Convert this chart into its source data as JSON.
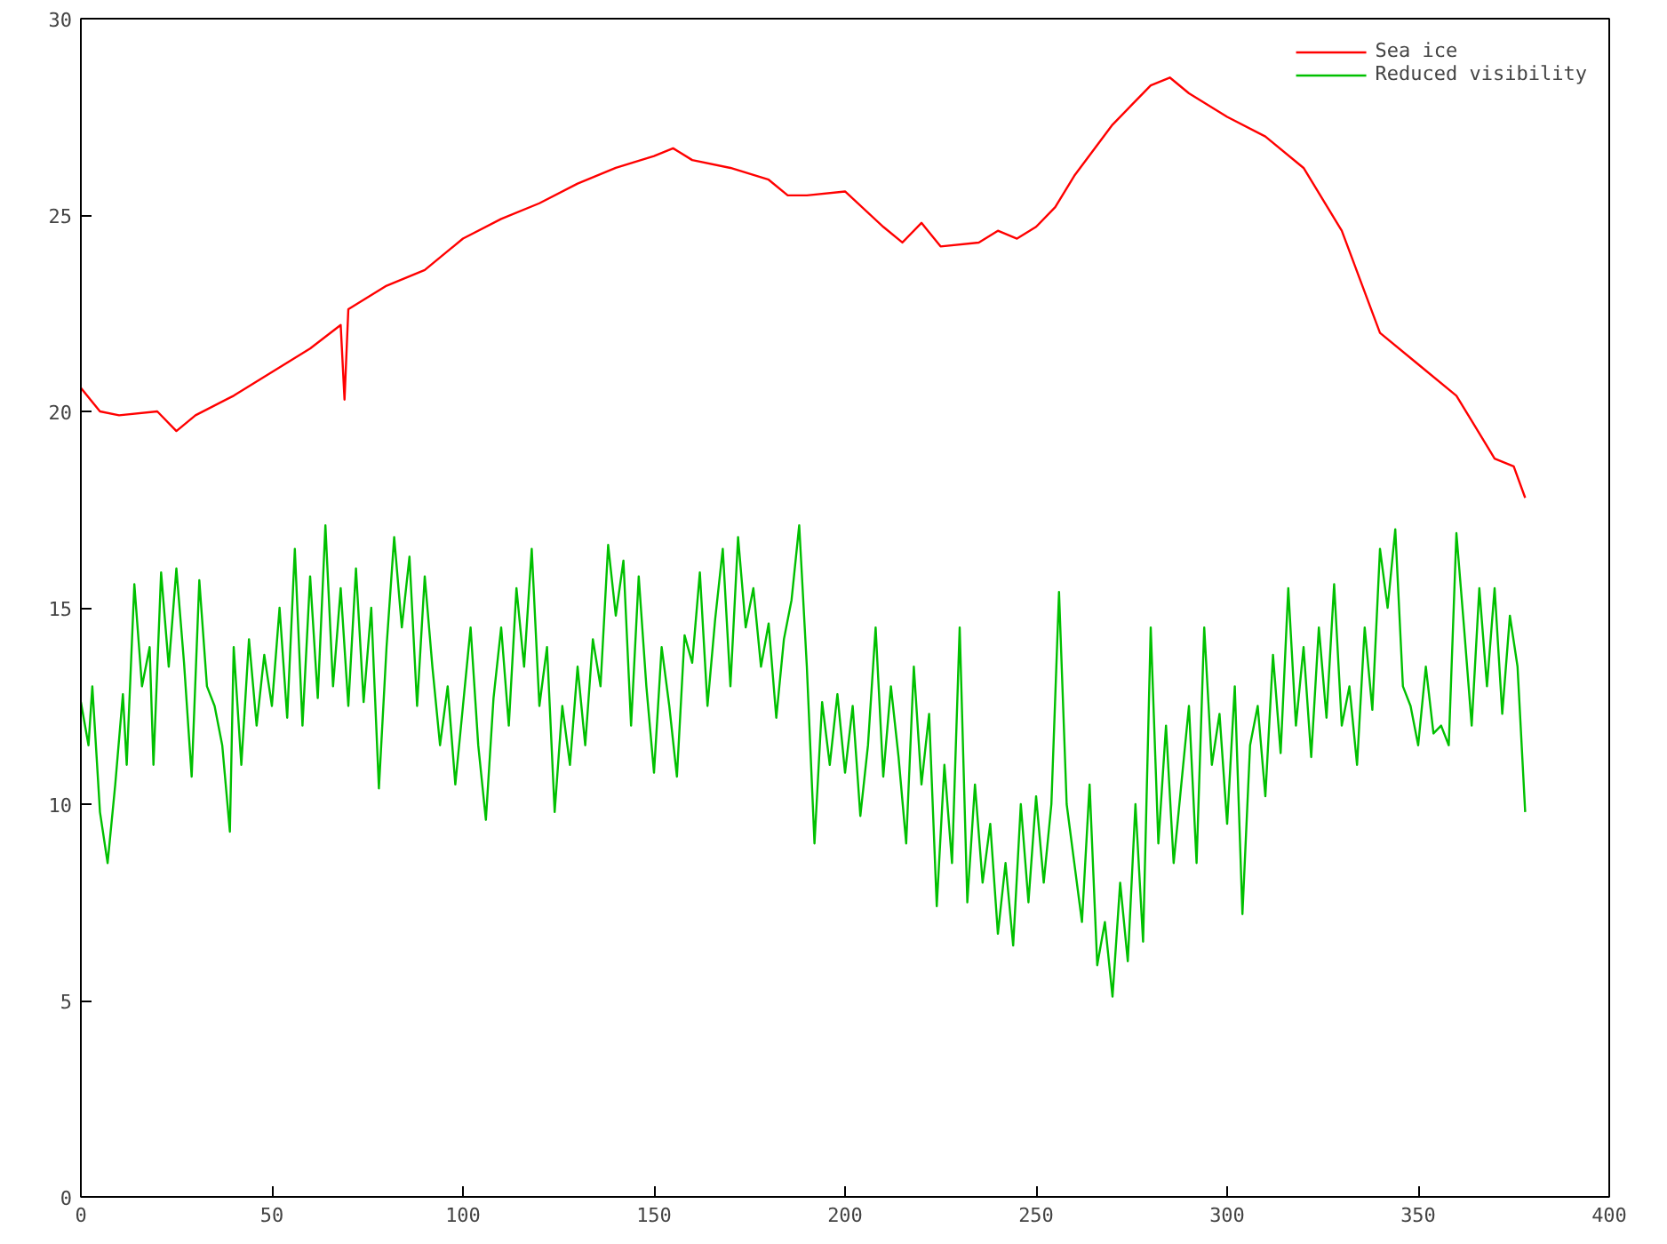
{
  "chart_data": {
    "type": "line",
    "xlim": [
      0,
      400
    ],
    "ylim": [
      0,
      30
    ],
    "xticks": [
      0,
      50,
      100,
      150,
      200,
      250,
      300,
      350,
      400
    ],
    "yticks": [
      0,
      5,
      10,
      15,
      20,
      25,
      30
    ],
    "grid": false,
    "legend": "top right",
    "marker": "none",
    "line_style": "solid",
    "series": [
      {
        "name": "Sea ice",
        "color": "#ff0000",
        "x": [
          0,
          5,
          10,
          20,
          25,
          30,
          40,
          50,
          60,
          68,
          69,
          70,
          80,
          90,
          100,
          110,
          120,
          130,
          140,
          150,
          155,
          160,
          170,
          180,
          185,
          190,
          200,
          210,
          215,
          220,
          225,
          235,
          240,
          245,
          250,
          255,
          260,
          270,
          280,
          285,
          290,
          300,
          310,
          320,
          330,
          340,
          350,
          360,
          365,
          370,
          375,
          378
        ],
        "values": [
          20.6,
          20.0,
          19.9,
          20.0,
          19.5,
          19.9,
          20.4,
          21.0,
          21.6,
          22.2,
          20.3,
          22.6,
          23.2,
          23.6,
          24.4,
          24.9,
          25.3,
          25.8,
          26.2,
          26.5,
          26.7,
          26.4,
          26.2,
          25.9,
          25.5,
          25.5,
          25.6,
          24.7,
          24.3,
          24.8,
          24.2,
          24.3,
          24.6,
          24.4,
          24.7,
          25.2,
          26.0,
          27.3,
          28.3,
          28.5,
          28.1,
          27.5,
          27.0,
          26.2,
          24.6,
          22.0,
          21.2,
          20.4,
          19.6,
          18.8,
          18.6,
          17.8
        ]
      },
      {
        "name": "Reduced visibility",
        "color": "#00c000",
        "x": [
          0,
          2,
          3,
          5,
          7,
          9,
          11,
          12,
          14,
          16,
          18,
          19,
          21,
          23,
          25,
          27,
          29,
          31,
          33,
          35,
          37,
          39,
          40,
          42,
          44,
          46,
          48,
          50,
          52,
          54,
          56,
          58,
          60,
          62,
          64,
          66,
          68,
          70,
          72,
          74,
          76,
          78,
          80,
          82,
          84,
          86,
          88,
          90,
          92,
          94,
          96,
          98,
          100,
          102,
          104,
          106,
          108,
          110,
          112,
          114,
          116,
          118,
          120,
          122,
          124,
          126,
          128,
          130,
          132,
          134,
          136,
          138,
          140,
          142,
          144,
          146,
          148,
          150,
          152,
          154,
          156,
          158,
          160,
          162,
          164,
          166,
          168,
          170,
          172,
          174,
          176,
          178,
          180,
          182,
          184,
          186,
          188,
          190,
          192,
          194,
          196,
          198,
          200,
          202,
          204,
          206,
          208,
          210,
          212,
          214,
          216,
          218,
          220,
          222,
          224,
          226,
          228,
          230,
          232,
          234,
          236,
          238,
          240,
          242,
          244,
          246,
          248,
          250,
          252,
          254,
          256,
          258,
          260,
          262,
          264,
          266,
          268,
          270,
          272,
          274,
          276,
          278,
          280,
          282,
          284,
          286,
          288,
          290,
          292,
          294,
          296,
          298,
          300,
          302,
          304,
          306,
          308,
          310,
          312,
          314,
          316,
          318,
          320,
          322,
          324,
          326,
          328,
          330,
          332,
          334,
          336,
          338,
          340,
          342,
          344,
          346,
          348,
          350,
          352,
          354,
          356,
          358,
          360,
          362,
          364,
          366,
          368,
          370,
          372,
          374,
          376,
          378
        ],
        "values": [
          12.6,
          11.5,
          13.0,
          9.8,
          8.5,
          10.5,
          12.8,
          11.0,
          15.6,
          13.0,
          14.0,
          11.0,
          15.9,
          13.5,
          16.0,
          13.6,
          10.7,
          15.7,
          13.0,
          12.5,
          11.5,
          9.3,
          14.0,
          11.0,
          14.2,
          12.0,
          13.8,
          12.5,
          15.0,
          12.2,
          16.5,
          12.0,
          15.8,
          12.7,
          17.1,
          13.0,
          15.5,
          12.5,
          16.0,
          12.6,
          15.0,
          10.4,
          14.0,
          16.8,
          14.5,
          16.3,
          12.5,
          15.8,
          13.5,
          11.5,
          13.0,
          10.5,
          12.5,
          14.5,
          11.5,
          9.6,
          12.7,
          14.5,
          12.0,
          15.5,
          13.5,
          16.5,
          12.5,
          14.0,
          9.8,
          12.5,
          11.0,
          13.5,
          11.5,
          14.2,
          13.0,
          16.6,
          14.8,
          16.2,
          12.0,
          15.8,
          13.0,
          10.8,
          14.0,
          12.5,
          10.7,
          14.3,
          13.6,
          15.9,
          12.5,
          14.7,
          16.5,
          13.0,
          16.8,
          14.5,
          15.5,
          13.5,
          14.6,
          12.2,
          14.2,
          15.2,
          17.1,
          13.5,
          9.0,
          12.6,
          11.0,
          12.8,
          10.8,
          12.5,
          9.7,
          11.5,
          14.5,
          10.7,
          13.0,
          11.2,
          9.0,
          13.5,
          10.5,
          12.3,
          7.4,
          11.0,
          8.5,
          14.5,
          7.5,
          10.5,
          8.0,
          9.5,
          6.7,
          8.5,
          6.4,
          10.0,
          7.5,
          10.2,
          8.0,
          10.0,
          15.4,
          10.0,
          8.5,
          7.0,
          10.5,
          5.9,
          7.0,
          5.1,
          8.0,
          6.0,
          10.0,
          6.5,
          14.5,
          9.0,
          12.0,
          8.5,
          10.5,
          12.5,
          8.5,
          14.5,
          11.0,
          12.3,
          9.5,
          13.0,
          7.2,
          11.5,
          12.5,
          10.2,
          13.8,
          11.3,
          15.5,
          12.0,
          14.0,
          11.2,
          14.5,
          12.2,
          15.6,
          12.0,
          13.0,
          11.0,
          14.5,
          12.4,
          16.5,
          15.0,
          17.0,
          13.0,
          12.5,
          11.5,
          13.5,
          11.8,
          12.0,
          11.5,
          16.9,
          14.5,
          12.0,
          15.5,
          13.0,
          15.5,
          12.3,
          14.8,
          13.5,
          9.8
        ]
      }
    ]
  }
}
